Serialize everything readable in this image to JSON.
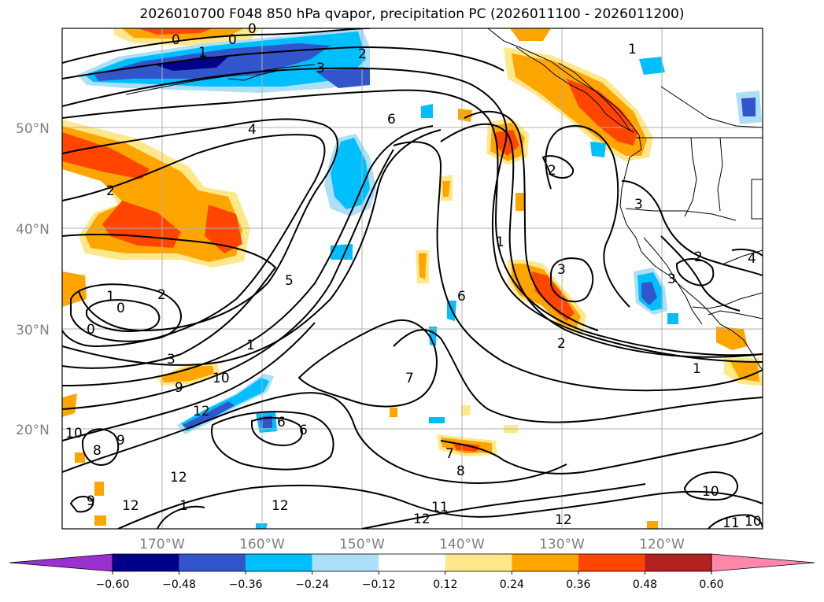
{
  "title": "2026010700 F048 850 hPa qvapor, precipitation PC (2026011100 - 2026011200)",
  "latitude_labels": [
    "50°N",
    "40°N",
    "30°N",
    "20°N"
  ],
  "longitude_labels": [
    "170°W",
    "160°W",
    "150°W",
    "140°W",
    "130°W",
    "120°W"
  ],
  "colorbar": {
    "tick_labels": [
      "−0.60",
      "−0.48",
      "−0.36",
      "−0.24",
      "−0.12",
      "0.12",
      "0.24",
      "0.36",
      "0.48",
      "0.60"
    ],
    "colors": [
      "#9b30d0",
      "#00008b",
      "#3355cc",
      "#00bfff",
      "#ade0f8",
      "#ffffff",
      "#ffe88a",
      "#ffa500",
      "#ff4500",
      "#b22222",
      "#ff88aa"
    ]
  },
  "contour_labels": [
    "0",
    "0",
    "0",
    "1",
    "2",
    "3",
    "1",
    "4",
    "6",
    "2",
    "2",
    "1",
    "3",
    "5",
    "6",
    "2",
    "1",
    "0",
    "1",
    "2",
    "0",
    "3",
    "9",
    "10",
    "12",
    "1",
    "7",
    "6",
    "6",
    "8",
    "9",
    "10",
    "11",
    "12",
    "12",
    "12",
    "12",
    "10",
    "11",
    "10",
    "3",
    "4",
    "2",
    "3",
    "8",
    "7",
    "1",
    "12",
    "9"
  ],
  "fill_colors": {
    "positive_light": "#ffe88a",
    "positive_mid": "#ffa500",
    "positive_high": "#ff4500",
    "negative_light": "#ade0f8",
    "negative_mid": "#00bfff",
    "negative_high": "#3355cc",
    "negative_max": "#00008b"
  }
}
